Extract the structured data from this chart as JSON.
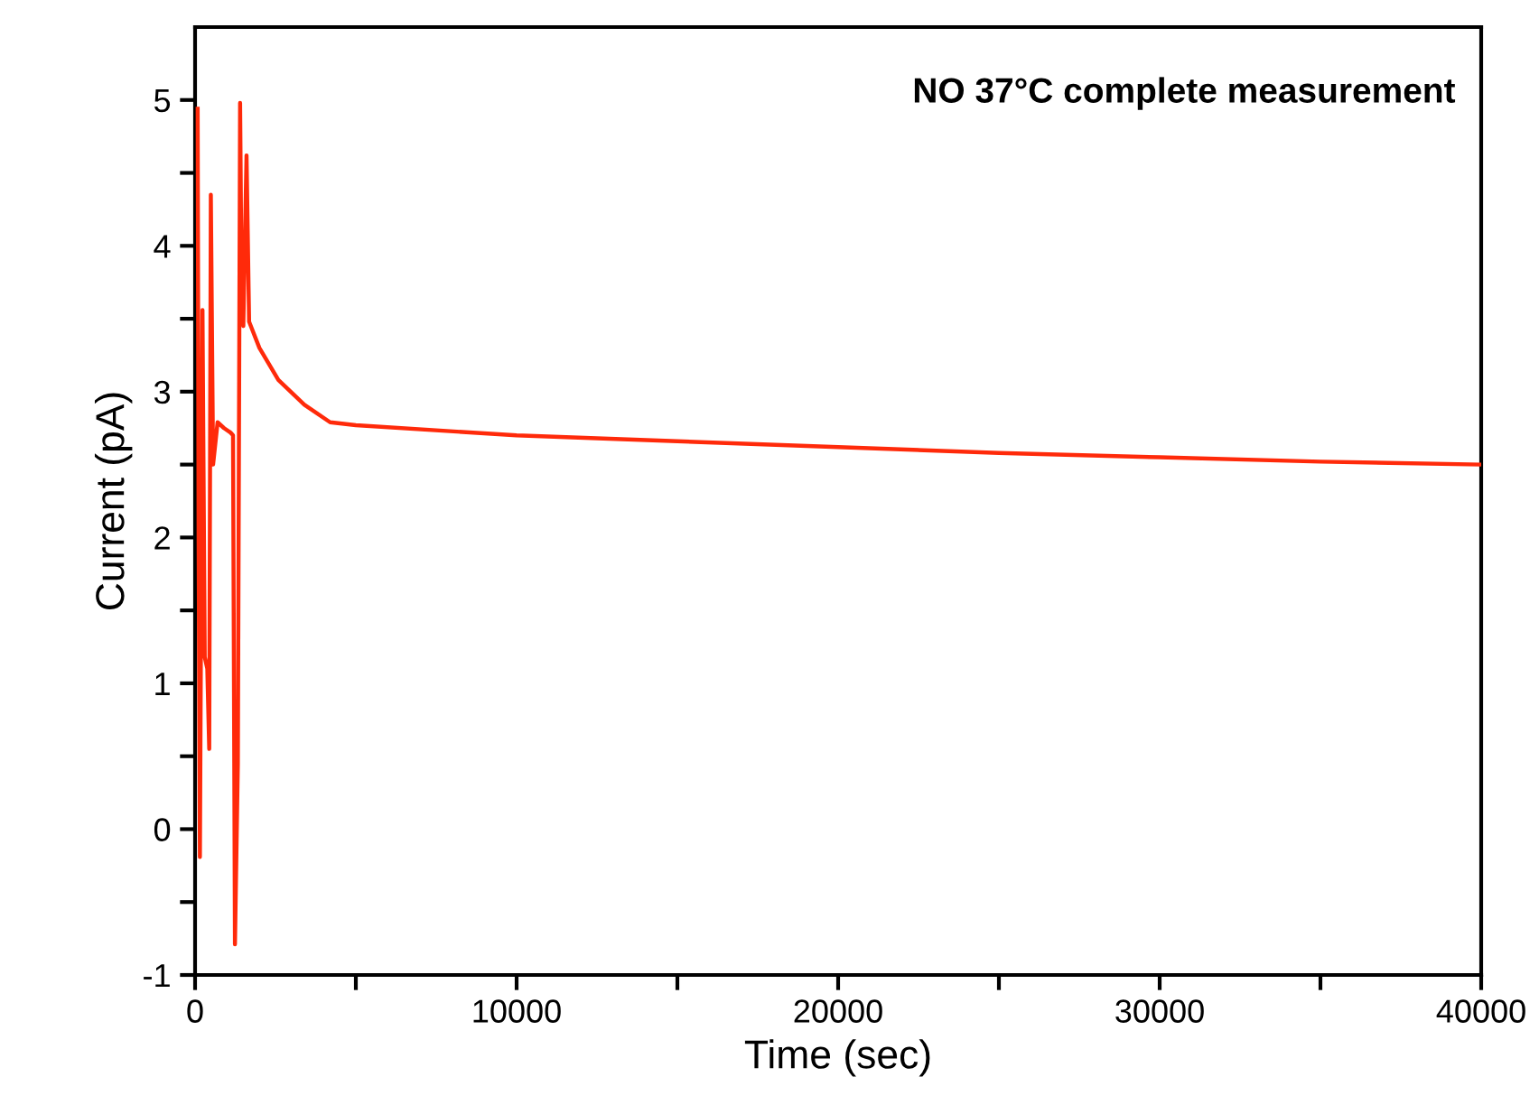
{
  "chart_data": {
    "type": "line",
    "xlabel": "Time (sec)",
    "ylabel": "Current (pA)",
    "annotations": [
      "NO 37°C complete measurement"
    ],
    "xlim": [
      0,
      40000
    ],
    "ylim": [
      -1,
      5.5
    ],
    "xticks": [
      0,
      {
        "value": 5000,
        "label": null
      },
      10000,
      {
        "value": 15000,
        "label": null
      },
      20000,
      {
        "value": 25000,
        "label": null
      },
      30000,
      {
        "value": 35000,
        "label": null
      },
      40000
    ],
    "yticks": [
      -1,
      {
        "value": -0.5,
        "label": null
      },
      0,
      {
        "value": 0.5,
        "label": null
      },
      1,
      {
        "value": 1.5,
        "label": null
      },
      2,
      {
        "value": 2.5,
        "label": null
      },
      3,
      {
        "value": 3.5,
        "label": null
      },
      4,
      {
        "value": 4.5,
        "label": null
      },
      5
    ],
    "grid": false,
    "legend": false,
    "marker": "none",
    "line_style": "solid",
    "series": [
      {
        "color": "#ff2a0a",
        "x": [
          80,
          110,
          150,
          230,
          300,
          380,
          440,
          490,
          560,
          700,
          900,
          1100,
          1180,
          1240,
          1330,
          1400,
          1450,
          1500,
          1600,
          1680,
          2000,
          2590,
          3400,
          4200,
          5000,
          10000,
          15000,
          20000,
          25000,
          30000,
          35000,
          40000
        ],
        "values": [
          4.94,
          2.0,
          -0.19,
          3.56,
          1.18,
          1.1,
          0.55,
          4.35,
          2.5,
          2.79,
          2.75,
          2.72,
          2.7,
          -0.79,
          0.45,
          4.98,
          3.57,
          3.45,
          4.62,
          3.48,
          3.3,
          3.08,
          2.91,
          2.79,
          2.77,
          2.7,
          2.66,
          2.62,
          2.58,
          2.55,
          2.52,
          2.5
        ]
      }
    ]
  }
}
